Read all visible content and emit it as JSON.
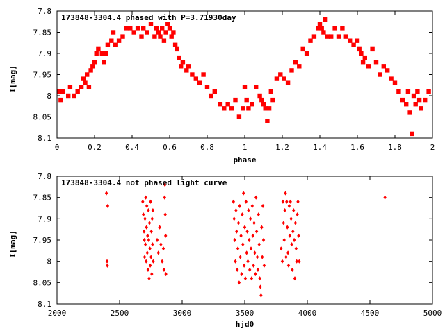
{
  "chart_data": [
    {
      "type": "scatter",
      "title": "173848-3304.4 phased with P=3.71930day",
      "xlabel": "phase",
      "ylabel": "I[mag]",
      "xlim": [
        0,
        2
      ],
      "ylim": [
        7.8,
        8.1
      ],
      "y_inverted": true,
      "grid": false,
      "x_ticks": [
        "0",
        "0.2",
        "0.4",
        "0.6",
        "0.8",
        "1",
        "1.2",
        "1.4",
        "1.6",
        "1.8",
        "2"
      ],
      "y_ticks": [
        "7.8",
        "7.85",
        "7.9",
        "7.95",
        "8",
        "8.05",
        "8.1"
      ],
      "marker_color": "#ff0000",
      "series": [
        {
          "points": [
            [
              0.01,
              7.99
            ],
            [
              0.02,
              8.01
            ],
            [
              0.03,
              7.99
            ],
            [
              0.06,
              8.0
            ],
            [
              0.07,
              7.98
            ],
            [
              0.09,
              8.0
            ],
            [
              0.11,
              7.99
            ],
            [
              0.13,
              7.98
            ],
            [
              0.14,
              7.96
            ],
            [
              0.15,
              7.97
            ],
            [
              0.16,
              7.95
            ],
            [
              0.17,
              7.98
            ],
            [
              0.18,
              7.94
            ],
            [
              0.19,
              7.93
            ],
            [
              0.2,
              7.92
            ],
            [
              0.21,
              7.9
            ],
            [
              0.22,
              7.89
            ],
            [
              0.24,
              7.9
            ],
            [
              0.25,
              7.92
            ],
            [
              0.26,
              7.9
            ],
            [
              0.27,
              7.88
            ],
            [
              0.29,
              7.87
            ],
            [
              0.3,
              7.85
            ],
            [
              0.31,
              7.88
            ],
            [
              0.33,
              7.87
            ],
            [
              0.35,
              7.86
            ],
            [
              0.37,
              7.84
            ],
            [
              0.39,
              7.84
            ],
            [
              0.41,
              7.85
            ],
            [
              0.43,
              7.84
            ],
            [
              0.45,
              7.86
            ],
            [
              0.46,
              7.84
            ],
            [
              0.48,
              7.85
            ],
            [
              0.5,
              7.83
            ],
            [
              0.52,
              7.86
            ],
            [
              0.53,
              7.84
            ],
            [
              0.54,
              7.85
            ],
            [
              0.55,
              7.86
            ],
            [
              0.56,
              7.84
            ],
            [
              0.57,
              7.87
            ],
            [
              0.58,
              7.85
            ],
            [
              0.59,
              7.83
            ],
            [
              0.6,
              7.84
            ],
            [
              0.61,
              7.86
            ],
            [
              0.62,
              7.85
            ],
            [
              0.63,
              7.88
            ],
            [
              0.64,
              7.89
            ],
            [
              0.65,
              7.91
            ],
            [
              0.66,
              7.93
            ],
            [
              0.67,
              7.92
            ],
            [
              0.69,
              7.94
            ],
            [
              0.7,
              7.93
            ],
            [
              0.72,
              7.95
            ],
            [
              0.74,
              7.96
            ],
            [
              0.76,
              7.97
            ],
            [
              0.78,
              7.95
            ],
            [
              0.8,
              7.98
            ],
            [
              0.82,
              8.0
            ],
            [
              0.84,
              7.99
            ],
            [
              0.87,
              8.02
            ],
            [
              0.89,
              8.03
            ],
            [
              0.91,
              8.02
            ],
            [
              0.93,
              8.03
            ],
            [
              0.95,
              8.01
            ],
            [
              0.97,
              8.05
            ],
            [
              0.99,
              8.03
            ],
            [
              1.0,
              7.98
            ],
            [
              1.01,
              8.01
            ],
            [
              1.02,
              8.03
            ],
            [
              1.04,
              8.02
            ],
            [
              1.06,
              7.98
            ],
            [
              1.08,
              8.0
            ],
            [
              1.09,
              8.01
            ],
            [
              1.1,
              8.02
            ],
            [
              1.11,
              8.03
            ],
            [
              1.12,
              8.06
            ],
            [
              1.13,
              8.03
            ],
            [
              1.14,
              7.99
            ],
            [
              1.15,
              8.01
            ],
            [
              1.17,
              7.96
            ],
            [
              1.19,
              7.95
            ],
            [
              1.21,
              7.96
            ],
            [
              1.23,
              7.97
            ],
            [
              1.25,
              7.94
            ],
            [
              1.27,
              7.92
            ],
            [
              1.29,
              7.93
            ],
            [
              1.31,
              7.89
            ],
            [
              1.33,
              7.9
            ],
            [
              1.35,
              7.87
            ],
            [
              1.37,
              7.86
            ],
            [
              1.39,
              7.84
            ],
            [
              1.4,
              7.83
            ],
            [
              1.41,
              7.84
            ],
            [
              1.42,
              7.85
            ],
            [
              1.43,
              7.82
            ],
            [
              1.44,
              7.86
            ],
            [
              1.46,
              7.86
            ],
            [
              1.48,
              7.84
            ],
            [
              1.5,
              7.86
            ],
            [
              1.52,
              7.84
            ],
            [
              1.54,
              7.86
            ],
            [
              1.56,
              7.87
            ],
            [
              1.58,
              7.88
            ],
            [
              1.6,
              7.87
            ],
            [
              1.61,
              7.89
            ],
            [
              1.62,
              7.9
            ],
            [
              1.63,
              7.92
            ],
            [
              1.64,
              7.91
            ],
            [
              1.66,
              7.93
            ],
            [
              1.68,
              7.89
            ],
            [
              1.7,
              7.92
            ],
            [
              1.72,
              7.95
            ],
            [
              1.74,
              7.93
            ],
            [
              1.76,
              7.94
            ],
            [
              1.78,
              7.96
            ],
            [
              1.8,
              7.97
            ],
            [
              1.82,
              7.99
            ],
            [
              1.84,
              8.01
            ],
            [
              1.86,
              8.02
            ],
            [
              1.87,
              7.99
            ],
            [
              1.88,
              8.04
            ],
            [
              1.89,
              8.09
            ],
            [
              1.9,
              8.0
            ],
            [
              1.91,
              8.02
            ],
            [
              1.92,
              7.99
            ],
            [
              1.93,
              8.01
            ],
            [
              1.94,
              8.03
            ],
            [
              1.96,
              8.01
            ],
            [
              1.98,
              7.99
            ]
          ]
        }
      ]
    },
    {
      "type": "scatter",
      "title": "173848-3304.4 not phased light curve",
      "xlabel": "hjd0",
      "ylabel": "I[mag]",
      "xlim": [
        2000,
        5000
      ],
      "ylim": [
        7.8,
        8.1
      ],
      "y_inverted": true,
      "grid": false,
      "x_ticks": [
        "2000",
        "2500",
        "3000",
        "3500",
        "4000",
        "4500",
        "5000"
      ],
      "y_ticks": [
        "7.8",
        "7.85",
        "7.9",
        "7.95",
        "8",
        "8.05",
        "8.1"
      ],
      "marker_color": "#ff0000",
      "series": [
        {
          "points": [
            [
              2395,
              7.84
            ],
            [
              2400,
              8.0
            ],
            [
              2402,
              8.01
            ],
            [
              2405,
              7.87
            ],
            [
              2685,
              7.86
            ],
            [
              2690,
              7.89
            ],
            [
              2695,
              7.93
            ],
            [
              2698,
              7.95
            ],
            [
              2700,
              7.99
            ],
            [
              2703,
              7.9
            ],
            [
              2706,
              7.96
            ],
            [
              2709,
              7.85
            ],
            [
              2712,
              8.0
            ],
            [
              2715,
              7.92
            ],
            [
              2718,
              7.87
            ],
            [
              2721,
              7.98
            ],
            [
              2724,
              7.94
            ],
            [
              2727,
              8.02
            ],
            [
              2730,
              7.88
            ],
            [
              2733,
              7.95
            ],
            [
              2736,
              8.04
            ],
            [
              2739,
              7.91
            ],
            [
              2742,
              7.97
            ],
            [
              2745,
              8.01
            ],
            [
              2748,
              7.86
            ],
            [
              2751,
              7.99
            ],
            [
              2754,
              7.93
            ],
            [
              2757,
              8.03
            ],
            [
              2760,
              7.9
            ],
            [
              2763,
              7.96
            ],
            [
              2766,
              7.88
            ],
            [
              2769,
              8.0
            ],
            [
              2800,
              7.95
            ],
            [
              2810,
              7.98
            ],
            [
              2820,
              7.92
            ],
            [
              2830,
              7.96
            ],
            [
              2840,
              8.0
            ],
            [
              2850,
              7.97
            ],
            [
              2855,
              8.02
            ],
            [
              2860,
              7.85
            ],
            [
              2862,
              7.82
            ],
            [
              2865,
              7.89
            ],
            [
              2868,
              7.94
            ],
            [
              2870,
              8.03
            ],
            [
              3410,
              7.86
            ],
            [
              3415,
              7.9
            ],
            [
              3420,
              7.95
            ],
            [
              3425,
              8.0
            ],
            [
              3430,
              7.88
            ],
            [
              3435,
              7.93
            ],
            [
              3440,
              8.02
            ],
            [
              3445,
              7.97
            ],
            [
              3450,
              7.91
            ],
            [
              3455,
              8.05
            ],
            [
              3460,
              7.87
            ],
            [
              3465,
              7.99
            ],
            [
              3470,
              7.94
            ],
            [
              3475,
              8.03
            ],
            [
              3480,
              7.89
            ],
            [
              3485,
              7.96
            ],
            [
              3490,
              7.84
            ],
            [
              3495,
              8.01
            ],
            [
              3500,
              7.92
            ],
            [
              3505,
              8.04
            ],
            [
              3510,
              7.86
            ],
            [
              3515,
              7.98
            ],
            [
              3520,
              7.93
            ],
            [
              3525,
              8.0
            ],
            [
              3530,
              7.88
            ],
            [
              3535,
              7.95
            ],
            [
              3540,
              8.02
            ],
            [
              3545,
              7.9
            ],
            [
              3550,
              7.97
            ],
            [
              3555,
              8.04
            ],
            [
              3560,
              7.87
            ],
            [
              3565,
              7.94
            ],
            [
              3570,
              8.01
            ],
            [
              3575,
              7.91
            ],
            [
              3580,
              7.98
            ],
            [
              3585,
              8.03
            ],
            [
              3590,
              7.85
            ],
            [
              3595,
              7.93
            ],
            [
              3600,
              7.99
            ],
            [
              3605,
              8.02
            ],
            [
              3610,
              7.89
            ],
            [
              3615,
              7.96
            ],
            [
              3620,
              8.04
            ],
            [
              3625,
              8.06
            ],
            [
              3630,
              8.08
            ],
            [
              3635,
              7.92
            ],
            [
              3640,
              7.99
            ],
            [
              3645,
              7.87
            ],
            [
              3650,
              7.95
            ],
            [
              3655,
              8.01
            ],
            [
              3790,
              7.97
            ],
            [
              3800,
              8.0
            ],
            [
              3805,
              7.86
            ],
            [
              3810,
              7.91
            ],
            [
              3815,
              7.95
            ],
            [
              3820,
              7.88
            ],
            [
              3825,
              7.84
            ],
            [
              3830,
              7.99
            ],
            [
              3835,
              7.86
            ],
            [
              3840,
              7.92
            ],
            [
              3845,
              7.98
            ],
            [
              3850,
              8.01
            ],
            [
              3855,
              7.87
            ],
            [
              3860,
              7.94
            ],
            [
              3865,
              7.86
            ],
            [
              3870,
              7.9
            ],
            [
              3875,
              7.96
            ],
            [
              3880,
              8.02
            ],
            [
              3885,
              7.93
            ],
            [
              3890,
              7.88
            ],
            [
              3895,
              7.95
            ],
            [
              3900,
              8.04
            ],
            [
              3905,
              7.91
            ],
            [
              3910,
              7.97
            ],
            [
              3915,
              8.0
            ],
            [
              3920,
              7.89
            ],
            [
              3925,
              7.86
            ],
            [
              3930,
              7.94
            ],
            [
              3935,
              8.0
            ],
            [
              4620,
              7.85
            ]
          ]
        }
      ]
    }
  ]
}
